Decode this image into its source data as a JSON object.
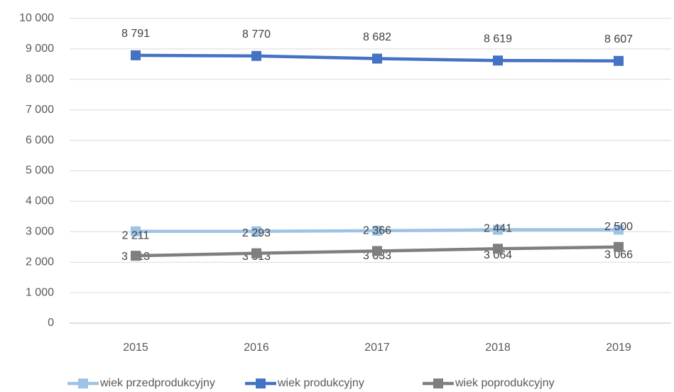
{
  "chart_data": {
    "type": "line",
    "categories": [
      "2015",
      "2016",
      "2017",
      "2018",
      "2019"
    ],
    "series": [
      {
        "name": "wiek przedprodukcyjny",
        "color": "#9dc3e6",
        "values": [
          3013,
          3013,
          3033,
          3064,
          3066
        ],
        "value_labels": [
          "3 013",
          "3 013",
          "3 033",
          "3 064",
          "3 066"
        ]
      },
      {
        "name": "wiek produkcyjny",
        "color": "#4472c4",
        "values": [
          8791,
          8770,
          8682,
          8619,
          8607
        ],
        "value_labels": [
          "8 791",
          "8 770",
          "8 682",
          "8 619",
          "8 607"
        ]
      },
      {
        "name": "wiek poprodukcyjny",
        "color": "#7f7f7f",
        "values": [
          2211,
          2293,
          2366,
          2441,
          2500
        ],
        "value_labels": [
          "2 211",
          "2 293",
          "2 366",
          "2 441",
          "2 500"
        ]
      }
    ],
    "ylim": [
      0,
      10000
    ],
    "yticks": [
      0,
      {
        "value": 1000,
        "label": "1 000"
      },
      {
        "value": 2000,
        "label": "2 000"
      },
      {
        "value": 3000,
        "label": "3 000"
      },
      {
        "value": 4000,
        "label": "4 000"
      },
      {
        "value": 5000,
        "label": "5 000"
      },
      {
        "value": 6000,
        "label": "6 000"
      },
      {
        "value": 7000,
        "label": "7 000"
      },
      {
        "value": 8000,
        "label": "8 000"
      },
      {
        "value": 9000,
        "label": "9 000"
      },
      {
        "value": 10000,
        "label": "10 000"
      }
    ],
    "grid": true,
    "legend": "bottom"
  }
}
